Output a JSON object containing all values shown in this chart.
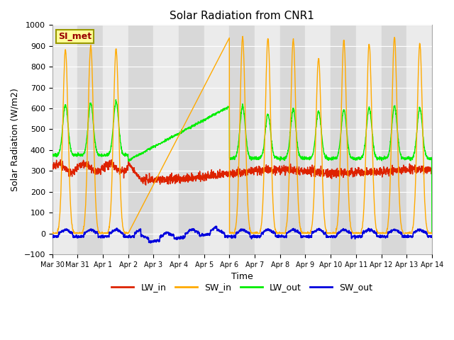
{
  "title": "Solar Radiation from CNR1",
  "xlabel": "Time",
  "ylabel": "Solar Radiation (W/m2)",
  "ylim": [
    -100,
    1000
  ],
  "legend_label": "SI_met",
  "colors": {
    "LW_in": "#dd2200",
    "SW_in": "#ffaa00",
    "LW_out": "#00ee00",
    "SW_out": "#0000dd"
  },
  "tick_labels": [
    "Mar 30",
    "Mar 31",
    "Apr 1",
    "Apr 2",
    "Apr 3",
    "Apr 4",
    "Apr 5",
    "Apr 6",
    "Apr 7",
    "Apr 8",
    "Apr 9",
    "Apr 10",
    "Apr 11",
    "Apr 12",
    "Apr 13",
    "Apr 14"
  ],
  "yticks": [
    -100,
    0,
    100,
    200,
    300,
    400,
    500,
    600,
    700,
    800,
    900,
    1000
  ],
  "bg_light": "#ebebeb",
  "bg_dark": "#d8d8d8",
  "grid_color": "#ffffff"
}
